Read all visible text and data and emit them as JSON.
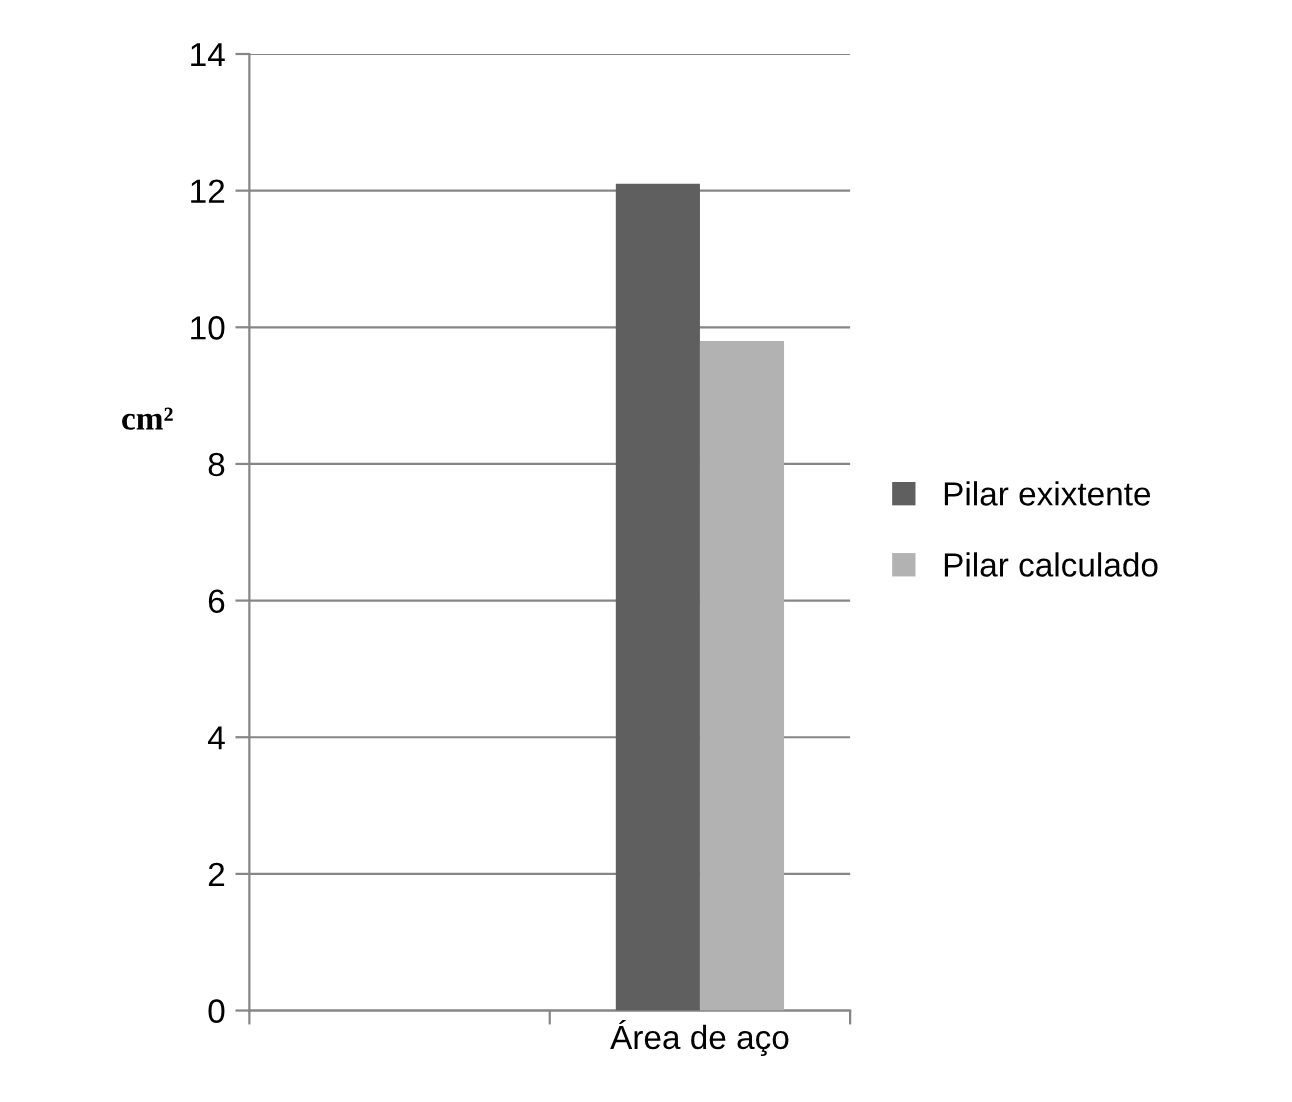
{
  "chart_data": {
    "type": "bar",
    "ylabel": "cm²",
    "categories": [
      null,
      "Área de aço"
    ],
    "series": [
      {
        "name": "Pilar exixtente",
        "color": "#5f5f5f",
        "values": [
          null,
          12.1
        ]
      },
      {
        "name": "Pilar calculado",
        "color": "#b2b2b2",
        "values": [
          null,
          9.8
        ]
      }
    ],
    "ylim": [
      0,
      14
    ],
    "yticks": [
      0,
      2,
      4,
      6,
      8,
      10,
      12,
      14
    ],
    "grid": "y",
    "legend": "right"
  }
}
